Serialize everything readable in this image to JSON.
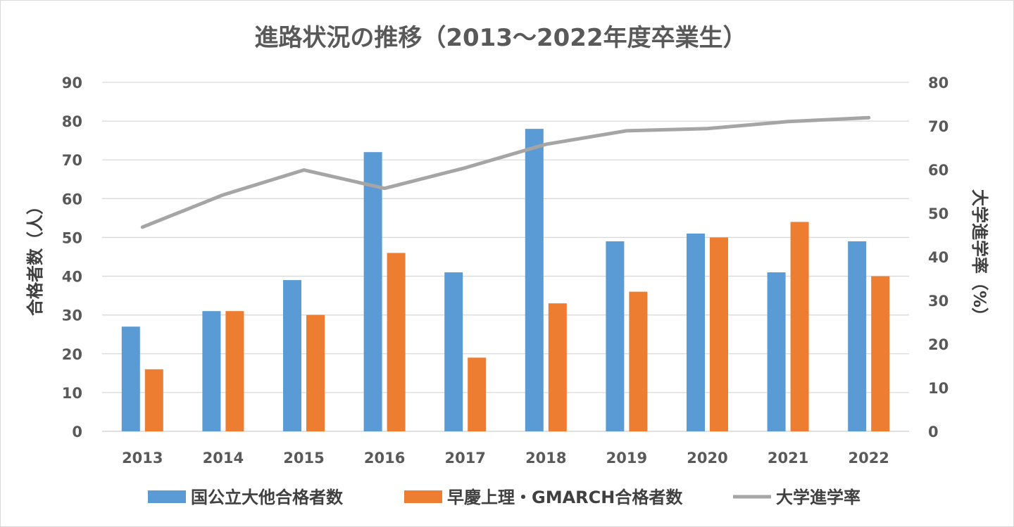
{
  "chart_data": {
    "type": "bar",
    "title": "進路状況の推移（2013～2022年度卒業生）",
    "categories": [
      "2013",
      "2014",
      "2015",
      "2016",
      "2017",
      "2018",
      "2019",
      "2020",
      "2021",
      "2022"
    ],
    "y_left": {
      "label": "合格者数（人）",
      "ylim": [
        0,
        90
      ],
      "ticks": [
        0,
        10,
        20,
        30,
        40,
        50,
        60,
        70,
        80,
        90
      ]
    },
    "y_right": {
      "label": "大学進学率（%）",
      "ylim": [
        0,
        80
      ],
      "ticks": [
        0,
        10,
        20,
        30,
        40,
        50,
        60,
        70,
        80
      ]
    },
    "grid": true,
    "legend_position": "bottom",
    "series": [
      {
        "name": "国公立大他合格者数",
        "type": "bar",
        "axis": "left",
        "color": "#5b9bd5",
        "values": [
          27,
          31,
          39,
          72,
          41,
          78,
          49,
          51,
          41,
          49
        ]
      },
      {
        "name": "早慶上理・GMARCH合格者数",
        "type": "bar",
        "axis": "left",
        "color": "#ed7d31",
        "values": [
          16,
          31,
          30,
          46,
          19,
          33,
          36,
          50,
          54,
          40
        ]
      },
      {
        "name": "大学進学率",
        "type": "line",
        "axis": "right",
        "color": "#a5a5a5",
        "values": [
          46.8,
          54.2,
          59.9,
          55.7,
          60.4,
          65.8,
          68.9,
          69.4,
          71.0,
          71.9
        ]
      }
    ]
  }
}
